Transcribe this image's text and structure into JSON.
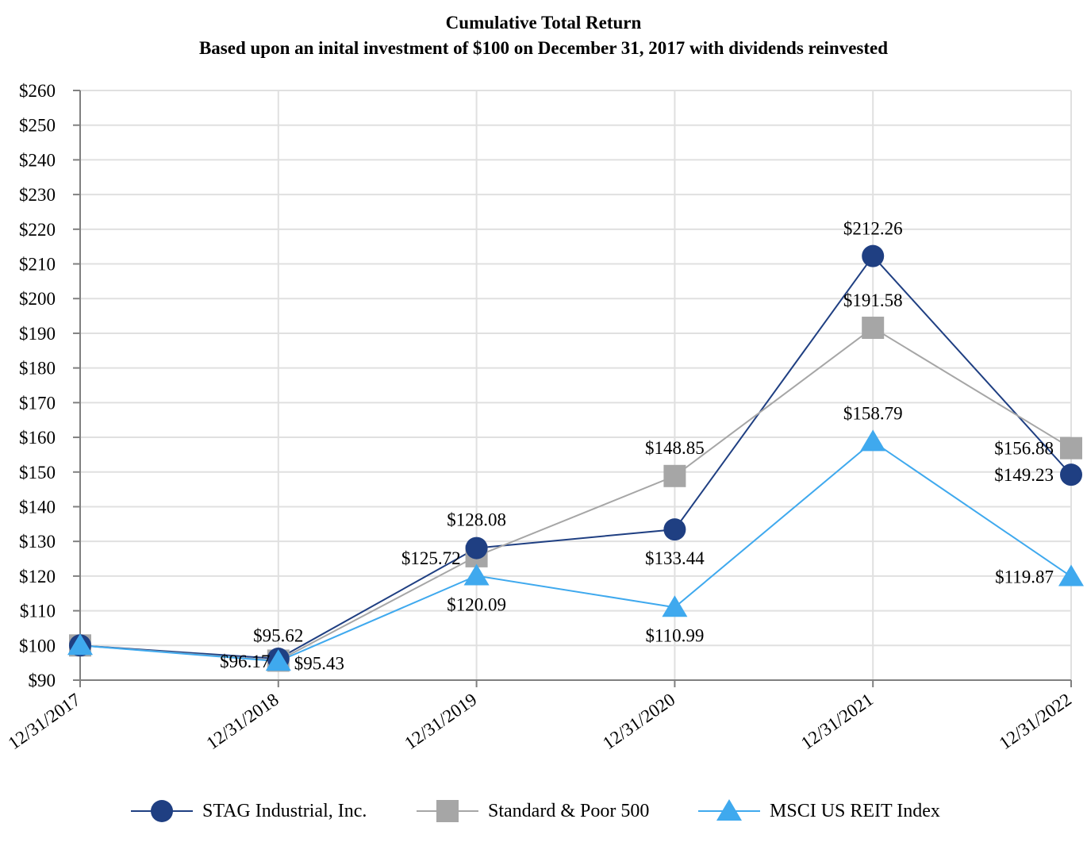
{
  "chart_data": {
    "type": "line",
    "title": "Cumulative Total Return",
    "subtitle": "Based upon an inital investment of $100 on December 31, 2017 with dividends reinvested",
    "categories": [
      "12/31/2017",
      "12/31/2018",
      "12/31/2019",
      "12/31/2020",
      "12/31/2021",
      "12/31/2022"
    ],
    "y_ticks": [
      "$90",
      "$100",
      "$110",
      "$120",
      "$130",
      "$140",
      "$150",
      "$160",
      "$170",
      "$180",
      "$190",
      "$200",
      "$210",
      "$220",
      "$230",
      "$240",
      "$250",
      "$260"
    ],
    "ylim": [
      90,
      260
    ],
    "grid": true,
    "legend_position": "bottom",
    "series": [
      {
        "name": "STAG Industrial, Inc.",
        "color": "#1f3f82",
        "marker": "circle",
        "values": [
          100,
          96.17,
          128.08,
          133.44,
          212.26,
          149.23
        ],
        "labels": [
          "",
          "$96.17",
          "$128.08",
          "$133.44",
          "$212.26",
          "$149.23"
        ]
      },
      {
        "name": "Standard & Poor 500",
        "color": "#a6a6a6",
        "marker": "square",
        "values": [
          100,
          95.62,
          125.72,
          148.85,
          191.58,
          156.88
        ],
        "labels": [
          "",
          "$95.62",
          "$125.72",
          "$148.85",
          "$191.58",
          "$156.88"
        ]
      },
      {
        "name": "MSCI US REIT Index",
        "color": "#3fa9ee",
        "marker": "triangle",
        "values": [
          100,
          95.43,
          120.09,
          110.99,
          158.79,
          119.87
        ],
        "labels": [
          "",
          "$95.43",
          "$120.09",
          "$110.99",
          "$158.79",
          "$119.87"
        ]
      }
    ]
  }
}
